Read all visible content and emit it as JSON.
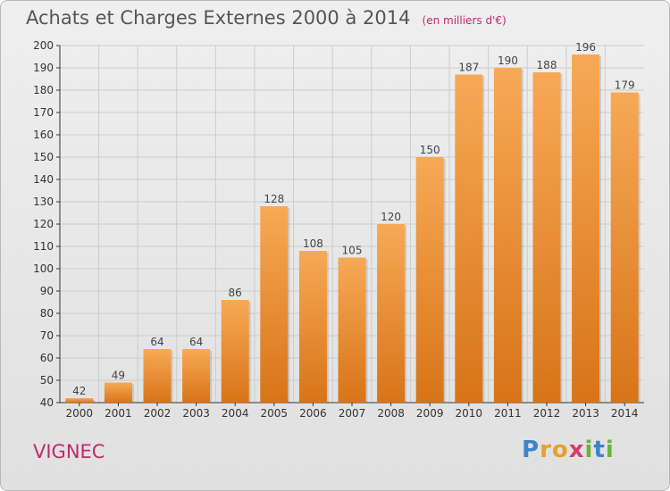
{
  "header": {
    "title": "Achats et Charges Externes 2000 à 2014",
    "unit": "(en milliers d'€)"
  },
  "footer": {
    "commune": "VIGNEC",
    "brand": "Proxiti",
    "brand_letters": [
      {
        "ch": "P",
        "color": "#3a86c8"
      },
      {
        "ch": "r",
        "color": "#e8a02c"
      },
      {
        "ch": "o",
        "color": "#e8a02c"
      },
      {
        "ch": "x",
        "color": "#d63a6e"
      },
      {
        "ch": "i",
        "color": "#6cb23a"
      },
      {
        "ch": "t",
        "color": "#3a86c8"
      },
      {
        "ch": "i",
        "color": "#6cb23a"
      }
    ]
  },
  "colors": {
    "bar_top": "#f7a956",
    "bar_bottom": "#d87418",
    "axis": "#333333",
    "grid": "#cccccc"
  },
  "chart_data": {
    "type": "bar",
    "title": "Achats et Charges Externes 2000 à 2014",
    "subtitle": "(en milliers d'€)",
    "categories": [
      "2000",
      "2001",
      "2002",
      "2003",
      "2004",
      "2005",
      "2006",
      "2007",
      "2008",
      "2009",
      "2010",
      "2011",
      "2012",
      "2013",
      "2014"
    ],
    "values": [
      42,
      49,
      64,
      64,
      86,
      128,
      108,
      105,
      120,
      150,
      187,
      190,
      188,
      196,
      179
    ],
    "ylim": [
      40,
      200
    ],
    "ytick_step": 10,
    "grid": true,
    "data_labels": true,
    "xlabel": "",
    "ylabel": ""
  }
}
